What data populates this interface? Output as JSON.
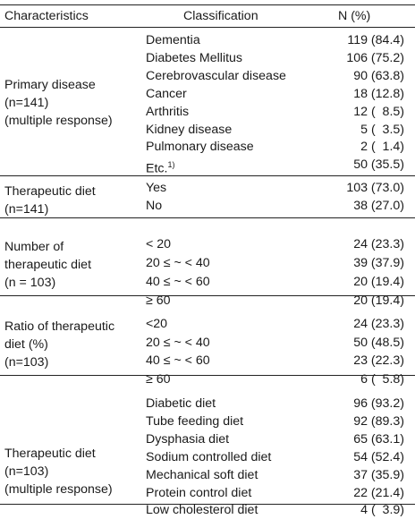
{
  "header": {
    "characteristics": "Characteristics",
    "classification": "Classification",
    "n_percent": "N (%)"
  },
  "sections": [
    {
      "characteristic": "Primary disease\n(n=141)\n(multiple response)",
      "rows": [
        {
          "label": "Dementia",
          "value": "119 (84.4)"
        },
        {
          "label": "Diabetes Mellitus",
          "value": "106 (75.2)"
        },
        {
          "label": "Cerebrovascular disease",
          "value": "90 (63.8)"
        },
        {
          "label": "Cancer",
          "value": "18 (12.8)"
        },
        {
          "label": "Arthritis",
          "value": "12 (  8.5)"
        },
        {
          "label": "Kidney disease",
          "value": "5 (  3.5)"
        },
        {
          "label": "Pulmonary disease",
          "value": "2 (  1.4)"
        },
        {
          "label": "Etc.",
          "sup": "1)",
          "value": "50 (35.5)"
        }
      ]
    },
    {
      "characteristic": "Therapeutic diet\n(n=141)",
      "rows": [
        {
          "label": "Yes",
          "value": "103 (73.0)"
        },
        {
          "label": "No",
          "value": "38 (27.0)"
        }
      ]
    },
    {
      "characteristic": "Number of\n therapeutic diet\n(n = 103)",
      "rows": [
        {
          "label": "< 20",
          "value": "24 (23.3)"
        },
        {
          "label": "20 ≤ ~ < 40",
          "value": "39 (37.9)"
        },
        {
          "label": "40 ≤ ~ < 60",
          "value": "20 (19.4)"
        },
        {
          "label": "≥ 60",
          "value": "20 (19.4)"
        }
      ]
    },
    {
      "characteristic": "Ratio of therapeutic\n diet (%)\n(n=103)",
      "rows": [
        {
          "label": "<20",
          "value": "24 (23.3)"
        },
        {
          "label": "20 ≤ ~ < 40",
          "value": "50 (48.5)"
        },
        {
          "label": "40 ≤ ~ < 60",
          "value": "23 (22.3)"
        },
        {
          "label": "≥ 60",
          "value": "6 (  5.8)"
        }
      ]
    },
    {
      "characteristic": "Therapeutic diet\n(n=103)\n(multiple response)",
      "rows": [
        {
          "label": "Diabetic diet",
          "value": "96 (93.2)"
        },
        {
          "label": "Tube feeding diet",
          "value": "92 (89.3)"
        },
        {
          "label": "Dysphasia diet",
          "value": "65 (63.1)"
        },
        {
          "label": "Sodium controlled diet",
          "value": "54 (52.4)"
        },
        {
          "label": "Mechanical soft diet",
          "value": "37 (35.9)"
        },
        {
          "label": "Protein control diet",
          "value": "22 (21.4)"
        },
        {
          "label": "Low cholesterol diet",
          "value": "4 (  3.9)"
        }
      ]
    }
  ]
}
